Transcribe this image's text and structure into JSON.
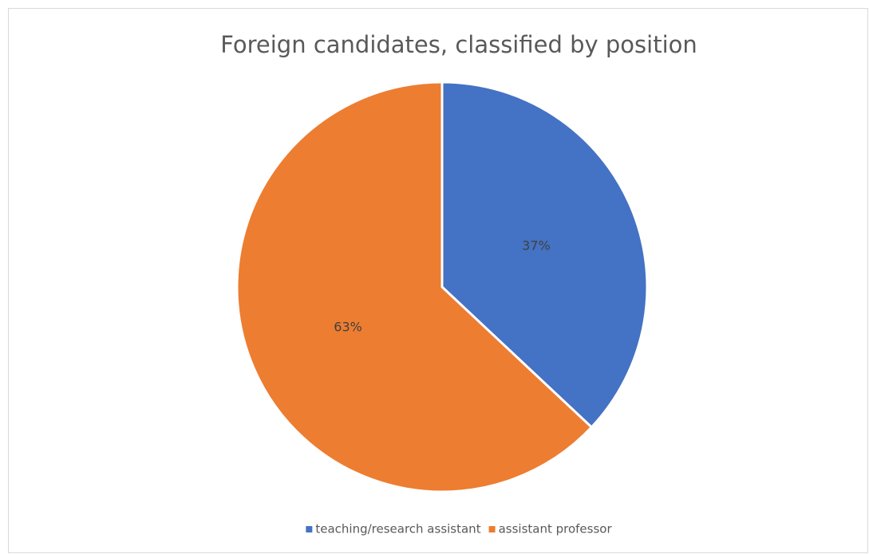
{
  "chart_data": {
    "type": "pie",
    "title": "Foreign candidates, classified by position",
    "categories": [
      "teaching/research assistant",
      "assistant professor"
    ],
    "values": [
      37,
      63
    ],
    "value_labels": [
      "37%",
      "63%"
    ],
    "colors": [
      "#4472c4",
      "#ed7d31"
    ],
    "legend": "bottom"
  }
}
